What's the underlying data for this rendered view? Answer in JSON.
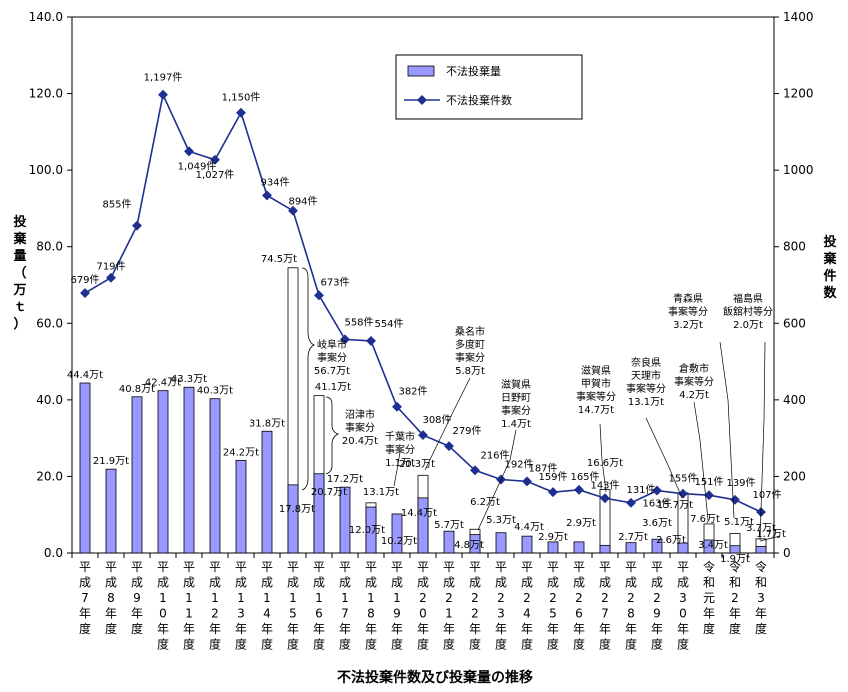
{
  "chart_data": {
    "type": "bar",
    "title": "不法投棄件数及び投棄量の推移",
    "categories": [
      "平成7年度",
      "平成8年度",
      "平成9年度",
      "平成10年度",
      "平成11年度",
      "平成12年度",
      "平成13年度",
      "平成14年度",
      "平成15年度",
      "平成16年度",
      "平成17年度",
      "平成18年度",
      "平成19年度",
      "平成20年度",
      "平成21年度",
      "平成22年度",
      "平成23年度",
      "平成24年度",
      "平成25年度",
      "平成26年度",
      "平成27年度",
      "平成28年度",
      "平成29年度",
      "平成30年度",
      "令和元年度",
      "令和2年度",
      "令和3年度"
    ],
    "y_left": {
      "label": "投棄量（万ｔ）",
      "lim": [
        0,
        140
      ],
      "ticks": [
        "0.0",
        "20.0",
        "40.0",
        "60.0",
        "80.0",
        "100.0",
        "120.0",
        "140.0"
      ]
    },
    "y_right": {
      "label": "投棄件数",
      "lim": [
        0,
        1400
      ],
      "ticks": [
        "0",
        "200",
        "400",
        "600",
        "800",
        "1000",
        "1200",
        "1400"
      ]
    },
    "grid": false,
    "legend_position": "top-center",
    "series": [
      {
        "name": "不法投棄量",
        "type": "bar",
        "axis": "left",
        "color": "#9999ff",
        "values": [
          44.4,
          21.9,
          40.8,
          42.4,
          43.3,
          40.3,
          24.2,
          31.8,
          17.8,
          20.7,
          17.2,
          12.0,
          10.2,
          14.4,
          5.7,
          4.8,
          5.3,
          4.4,
          2.9,
          2.9,
          2.0,
          2.7,
          3.6,
          2.6,
          3.4,
          1.9,
          1.7
        ],
        "labels": [
          "44.4万t",
          "21.9万t",
          "40.8万t",
          "42.4万t",
          "43.3万t",
          "40.3万t",
          "24.2万t",
          "31.8万t",
          "17.8万t",
          "20.7万t",
          "17.2万t",
          "12.0万t",
          "10.2万t",
          "14.4万t",
          "5.7万t",
          "4.8万t",
          "5.3万t",
          "4.4万t",
          "2.9万t",
          "2.9万t",
          "",
          "2.7万t",
          "3.6万t",
          "2.6万t",
          "3.4万t",
          "1.9万t",
          "1.7万t"
        ],
        "totals": [
          null,
          null,
          null,
          null,
          null,
          null,
          null,
          null,
          74.5,
          41.1,
          null,
          13.1,
          null,
          20.3,
          null,
          6.2,
          null,
          null,
          null,
          null,
          16.6,
          null,
          null,
          15.7,
          7.6,
          5.1,
          3.7
        ],
        "total_labels": [
          "",
          "",
          "",
          "",
          "",
          "",
          "",
          "",
          "74.5万t",
          "41.1万t",
          "",
          "13.1万t",
          "",
          "20.3万t",
          "",
          "6.2万t",
          "",
          "",
          "",
          "",
          "16.6万t",
          "",
          "",
          "15.7万t",
          "7.6万t",
          "5.1万t",
          "3.7万t"
        ]
      },
      {
        "name": "不法投棄件数",
        "type": "line",
        "axis": "right",
        "color": "#1f2f8f",
        "values": [
          679,
          719,
          855,
          1197,
          1049,
          1027,
          1150,
          934,
          894,
          673,
          558,
          554,
          382,
          308,
          279,
          216,
          192,
          187,
          159,
          165,
          143,
          131,
          163,
          155,
          151,
          139,
          107
        ],
        "labels": [
          "679件",
          "719件",
          "855件",
          "1,197件",
          "1,049件",
          "1,027件",
          "1,150件",
          "934件",
          "894件",
          "673件",
          "558件",
          "554件",
          "382件",
          "308件",
          "279件",
          "216件",
          "192件",
          "187件",
          "159件",
          "165件",
          "143件",
          "131件",
          "163件",
          "155件",
          "151件",
          "139件",
          "107件"
        ]
      }
    ],
    "annotations": [
      {
        "lines": [
          "岐阜市",
          "事案分",
          "56.7万t"
        ]
      },
      {
        "lines": [
          "沼津市",
          "事案分",
          "20.4万t"
        ]
      },
      {
        "lines": [
          "千葉市",
          "事案分",
          "1.1万t"
        ]
      },
      {
        "lines": [
          "桑名市",
          "多度町",
          "事案分",
          "5.8万t"
        ]
      },
      {
        "lines": [
          "滋賀県",
          "日野町",
          "事案分",
          "1.4万t"
        ]
      },
      {
        "lines": [
          "滋賀県",
          "甲賀市",
          "事案等分",
          "14.7万t"
        ]
      },
      {
        "lines": [
          "奈良県",
          "天理市",
          "事案等分",
          "13.1万t"
        ]
      },
      {
        "lines": [
          "倉敷市",
          "事案等分",
          "4.2万t"
        ]
      },
      {
        "lines": [
          "青森県",
          "事案等分",
          "3.2万t"
        ]
      },
      {
        "lines": [
          "福島県",
          "飯舘村等分",
          "2.0万t"
        ]
      }
    ]
  }
}
